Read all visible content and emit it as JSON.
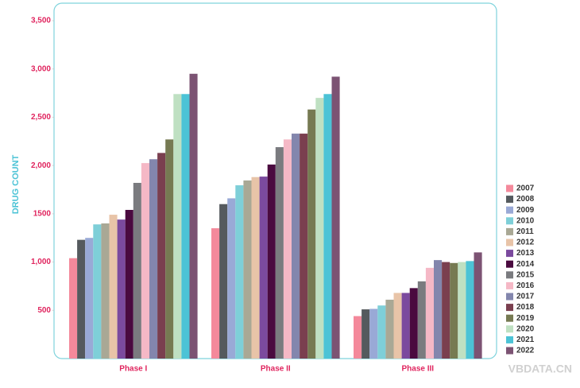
{
  "chart_data": {
    "type": "bar",
    "y_label": "DRUG COUNT",
    "categories": [
      "Phase I",
      "Phase II",
      "Phase III"
    ],
    "ylim": [
      0,
      3500
    ],
    "yticks": [
      500,
      {
        "value": 1000,
        "label": "1,000"
      },
      1500,
      {
        "value": 2000,
        "label": "2,000"
      },
      {
        "value": 2500,
        "label": "2,500"
      },
      {
        "value": 3000,
        "label": "3,000"
      },
      {
        "value": 3500,
        "label": "3,500"
      }
    ],
    "watermark": "VBDATA.CN",
    "series": [
      {
        "name": "2007",
        "color": "#f4899b",
        "values": [
          1040,
          1350,
          440
        ]
      },
      {
        "name": "2008",
        "color": "#555a5e",
        "values": [
          1230,
          1600,
          510
        ]
      },
      {
        "name": "2009",
        "color": "#99a9d6",
        "values": [
          1250,
          1660,
          515
        ]
      },
      {
        "name": "2010",
        "color": "#7ecfd8",
        "values": [
          1390,
          1795,
          550
        ]
      },
      {
        "name": "2011",
        "color": "#a9a895",
        "values": [
          1400,
          1845,
          610
        ]
      },
      {
        "name": "2012",
        "color": "#e8c4a8",
        "values": [
          1490,
          1880,
          680
        ]
      },
      {
        "name": "2013",
        "color": "#7b4a9e",
        "values": [
          1440,
          1885,
          680
        ]
      },
      {
        "name": "2014",
        "color": "#4a0a3f",
        "values": [
          1540,
          2010,
          730
        ]
      },
      {
        "name": "2015",
        "color": "#7a7b7f",
        "values": [
          1820,
          2190,
          800
        ]
      },
      {
        "name": "2016",
        "color": "#f5b8c6",
        "values": [
          2025,
          2270,
          940
        ]
      },
      {
        "name": "2017",
        "color": "#8386ad",
        "values": [
          2065,
          2330,
          1020
        ]
      },
      {
        "name": "2018",
        "color": "#7a3f4f",
        "values": [
          2130,
          2330,
          1000
        ]
      },
      {
        "name": "2019",
        "color": "#767a52",
        "values": [
          2270,
          2580,
          990
        ]
      },
      {
        "name": "2020",
        "color": "#bfe0c2",
        "values": [
          2740,
          2700,
          1000
        ]
      },
      {
        "name": "2021",
        "color": "#4cc3d6",
        "values": [
          2740,
          2740,
          1010
        ]
      },
      {
        "name": "2022",
        "color": "#7c5373",
        "values": [
          2950,
          2920,
          1100
        ]
      }
    ]
  }
}
